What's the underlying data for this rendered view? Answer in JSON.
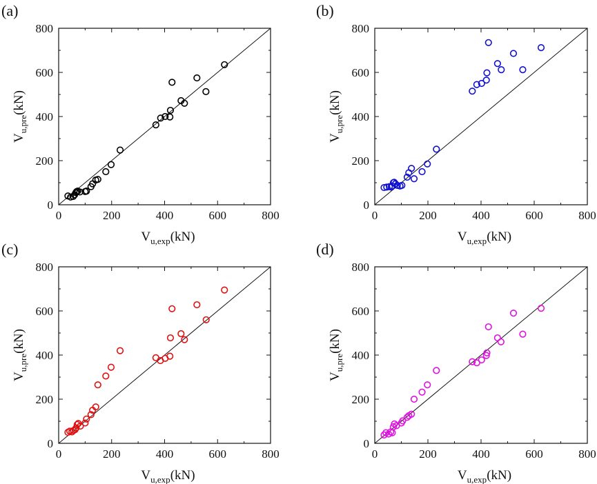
{
  "chart_data": [
    {
      "panel": "(a)",
      "type": "scatter",
      "color": "#000000",
      "xlabel": {
        "main": "V",
        "sub": "u,exp",
        "unit": "(kN)"
      },
      "ylabel": {
        "main": "V",
        "sub": "u,pre",
        "unit": "(kN)"
      },
      "xlim": [
        0,
        800
      ],
      "ylim": [
        0,
        800
      ],
      "xticks": [
        "0",
        "200",
        "400",
        "600",
        "800"
      ],
      "yticks": [
        "0",
        "200",
        "400",
        "600",
        "800"
      ],
      "reference_line": "y = x",
      "points": [
        [
          35,
          40
        ],
        [
          45,
          35
        ],
        [
          55,
          38
        ],
        [
          60,
          45
        ],
        [
          65,
          55
        ],
        [
          68,
          60
        ],
        [
          72,
          62
        ],
        [
          80,
          58
        ],
        [
          100,
          60
        ],
        [
          105,
          62
        ],
        [
          122,
          82
        ],
        [
          128,
          95
        ],
        [
          140,
          112
        ],
        [
          148,
          115
        ],
        [
          178,
          150
        ],
        [
          198,
          182
        ],
        [
          232,
          248
        ],
        [
          367,
          362
        ],
        [
          385,
          393
        ],
        [
          402,
          400
        ],
        [
          420,
          398
        ],
        [
          422,
          428
        ],
        [
          428,
          555
        ],
        [
          462,
          472
        ],
        [
          475,
          460
        ],
        [
          522,
          575
        ],
        [
          556,
          513
        ],
        [
          626,
          635
        ]
      ]
    },
    {
      "panel": "(b)",
      "type": "scatter",
      "color": "#1010d0",
      "xlabel": {
        "main": "V",
        "sub": "u,exp",
        "unit": "(kN)"
      },
      "ylabel": {
        "main": "V",
        "sub": "u,pre",
        "unit": "(kN)"
      },
      "xlim": [
        0,
        800
      ],
      "ylim": [
        0,
        800
      ],
      "xticks": [
        "0",
        "200",
        "400",
        "600",
        "800"
      ],
      "yticks": [
        "0",
        "200",
        "400",
        "600",
        "800"
      ],
      "reference_line": "y = x",
      "points": [
        [
          35,
          78
        ],
        [
          45,
          80
        ],
        [
          55,
          82
        ],
        [
          62,
          80
        ],
        [
          66,
          85
        ],
        [
          70,
          100
        ],
        [
          73,
          102
        ],
        [
          78,
          95
        ],
        [
          85,
          88
        ],
        [
          95,
          85
        ],
        [
          102,
          88
        ],
        [
          122,
          125
        ],
        [
          128,
          145
        ],
        [
          138,
          165
        ],
        [
          148,
          118
        ],
        [
          178,
          150
        ],
        [
          198,
          185
        ],
        [
          232,
          252
        ],
        [
          367,
          515
        ],
        [
          384,
          545
        ],
        [
          402,
          550
        ],
        [
          420,
          565
        ],
        [
          422,
          598
        ],
        [
          428,
          735
        ],
        [
          462,
          640
        ],
        [
          476,
          612
        ],
        [
          522,
          686
        ],
        [
          557,
          612
        ],
        [
          626,
          712
        ]
      ]
    },
    {
      "panel": "(c)",
      "type": "scatter",
      "color": "#e01010",
      "xlabel": {
        "main": "V",
        "sub": "u,exp",
        "unit": "(kN)"
      },
      "ylabel": {
        "main": "V",
        "sub": "u,pre",
        "unit": "(kN)"
      },
      "xlim": [
        0,
        800
      ],
      "ylim": [
        0,
        800
      ],
      "xticks": [
        "0",
        "200",
        "400",
        "600",
        "800"
      ],
      "yticks": [
        "0",
        "200",
        "400",
        "600",
        "800"
      ],
      "reference_line": "y = x",
      "points": [
        [
          35,
          50
        ],
        [
          42,
          55
        ],
        [
          50,
          52
        ],
        [
          56,
          58
        ],
        [
          62,
          62
        ],
        [
          66,
          70
        ],
        [
          70,
          85
        ],
        [
          74,
          90
        ],
        [
          82,
          78
        ],
        [
          100,
          92
        ],
        [
          105,
          110
        ],
        [
          122,
          130
        ],
        [
          128,
          150
        ],
        [
          140,
          165
        ],
        [
          148,
          265
        ],
        [
          178,
          305
        ],
        [
          198,
          345
        ],
        [
          232,
          420
        ],
        [
          367,
          388
        ],
        [
          384,
          375
        ],
        [
          402,
          385
        ],
        [
          420,
          395
        ],
        [
          422,
          478
        ],
        [
          428,
          610
        ],
        [
          462,
          497
        ],
        [
          475,
          470
        ],
        [
          522,
          628
        ],
        [
          557,
          560
        ],
        [
          626,
          695
        ]
      ]
    },
    {
      "panel": "(d)",
      "type": "scatter",
      "color": "#e010e0",
      "xlabel": {
        "main": "V",
        "sub": "u,exp",
        "unit": "(kN)"
      },
      "ylabel": {
        "main": "V",
        "sub": "u,pre",
        "unit": "(kN)"
      },
      "xlim": [
        0,
        800
      ],
      "ylim": [
        0,
        800
      ],
      "xticks": [
        "0",
        "200",
        "400",
        "600",
        "800"
      ],
      "yticks": [
        "0",
        "200",
        "400",
        "600",
        "800"
      ],
      "reference_line": "y = x",
      "points": [
        [
          35,
          38
        ],
        [
          42,
          48
        ],
        [
          52,
          42
        ],
        [
          60,
          52
        ],
        [
          66,
          48
        ],
        [
          70,
          75
        ],
        [
          74,
          88
        ],
        [
          82,
          80
        ],
        [
          100,
          92
        ],
        [
          105,
          102
        ],
        [
          122,
          118
        ],
        [
          128,
          125
        ],
        [
          138,
          132
        ],
        [
          148,
          200
        ],
        [
          178,
          232
        ],
        [
          198,
          265
        ],
        [
          232,
          330
        ],
        [
          367,
          370
        ],
        [
          384,
          365
        ],
        [
          402,
          378
        ],
        [
          420,
          398
        ],
        [
          422,
          410
        ],
        [
          428,
          528
        ],
        [
          462,
          478
        ],
        [
          475,
          460
        ],
        [
          522,
          590
        ],
        [
          557,
          495
        ],
        [
          626,
          612
        ]
      ]
    }
  ]
}
